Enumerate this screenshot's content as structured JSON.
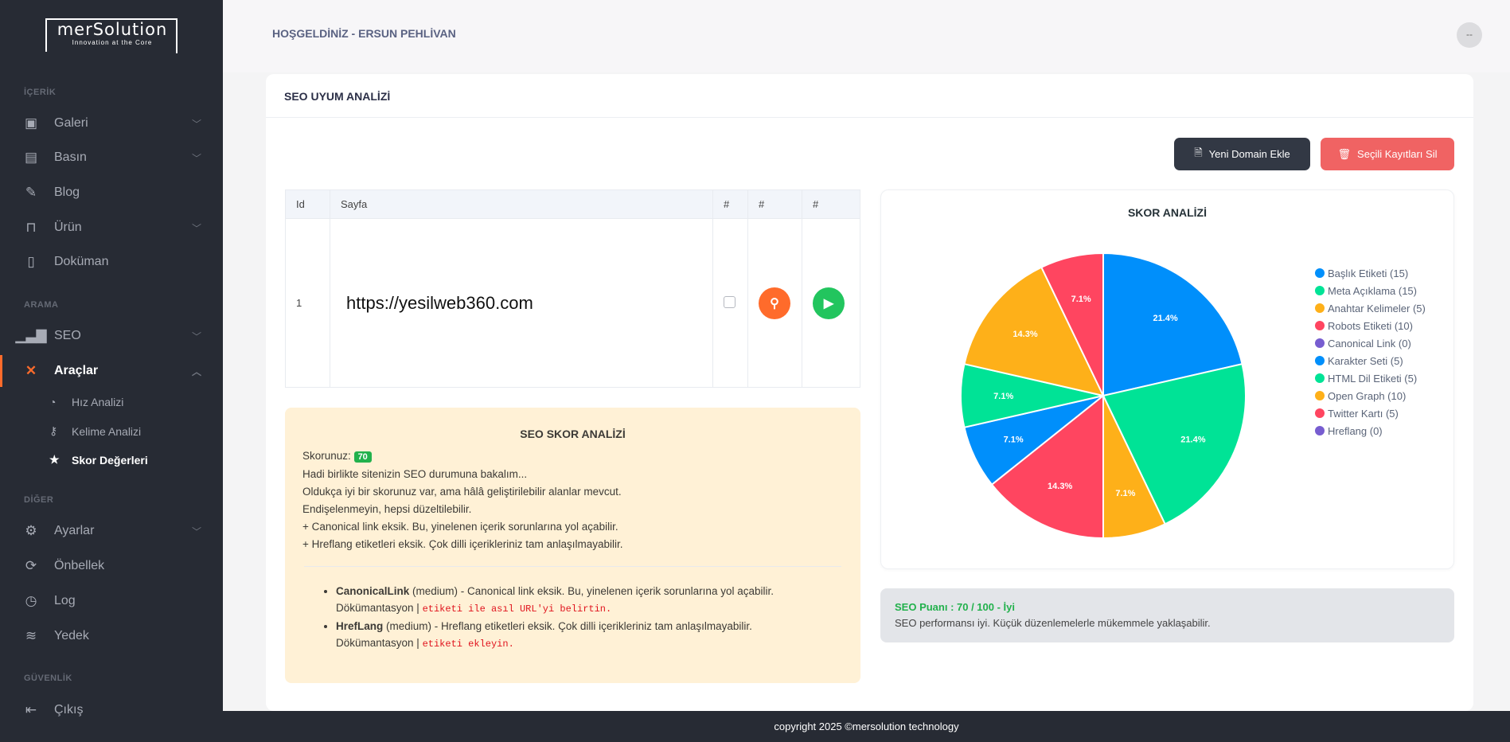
{
  "brand": {
    "name": "merSolution",
    "tagline": "Innovation at the Core"
  },
  "header": {
    "welcome": "HOŞGELDİNİZ - ERSUN PEHLİVAN",
    "avatar": "--"
  },
  "sidebar": {
    "sections": [
      "İÇERİK",
      "ARAMA",
      "DİĞER",
      "GÜVENLİK"
    ],
    "items": [
      {
        "label": "Galeri",
        "icon": "gallery-icon"
      },
      {
        "label": "Basın",
        "icon": "newspaper-icon"
      },
      {
        "label": "Blog",
        "icon": "edit-icon"
      },
      {
        "label": "Ürün",
        "icon": "bag-icon"
      },
      {
        "label": "Doküman",
        "icon": "document-icon"
      },
      {
        "label": "SEO",
        "icon": "bar-chart-icon"
      },
      {
        "label": "Araçlar",
        "icon": "tools-icon",
        "active": true
      },
      {
        "label": "Ayarlar",
        "icon": "gear-icon"
      },
      {
        "label": "Önbellek",
        "icon": "refresh-icon"
      },
      {
        "label": "Log",
        "icon": "clipboard-clock-icon"
      },
      {
        "label": "Yedek",
        "icon": "database-icon"
      },
      {
        "label": "Çıkış",
        "icon": "logout-icon"
      }
    ],
    "subitems": [
      {
        "label": "Hız Analizi",
        "icon": "speedometer-icon"
      },
      {
        "label": "Kelime Analizi",
        "icon": "key-icon"
      },
      {
        "label": "Skor Değerleri",
        "icon": "star-icon",
        "active": true
      }
    ]
  },
  "main": {
    "title": "SEO UYUM ANALİZİ",
    "buttons": {
      "add": "Yeni Domain Ekle",
      "delete": "Seçili Kayıtları Sil"
    },
    "table": {
      "headers": [
        "Id",
        "Sayfa",
        "#",
        "#",
        "#"
      ],
      "rows": [
        {
          "id": "1",
          "page": "https://yesilweb360.com"
        }
      ]
    },
    "analysis": {
      "title": "SEO SKOR ANALİZİ",
      "score_label": "Skorunuz:",
      "score": "70",
      "lines": [
        "Hadi birlikte sitenizin SEO durumuna bakalım...",
        "Oldukça iyi bir skorunuz var, ama hâlâ geliştirilebilir alanlar mevcut.",
        "Endişelenmeyin, hepsi düzeltilebilir.",
        "+ Canonical link eksik. Bu, yinelenen içerik sorunlarına yol açabilir.",
        "+ Hreflang etiketleri eksik. Çok dilli içerikleriniz tam anlaşılmayabilir."
      ],
      "issues": [
        {
          "name": "CanonicalLink",
          "level": "(medium)",
          "desc": " - Canonical link eksik. Bu, yinelenen içerik sorunlarına yol açabilir.",
          "doc": "Dökümantasyon | ",
          "code": "etiketi ile asıl URL'yi belirtin."
        },
        {
          "name": "HrefLang",
          "level": "(medium)",
          "desc": " - Hreflang etiketleri eksik. Çok dilli içerikleriniz tam anlaşılmayabilir.",
          "doc": "Dökümantasyon | ",
          "code": "etiketi ekleyin."
        }
      ]
    },
    "score_box": {
      "title": "SEO Puanı : 70 / 100 - İyi",
      "text": "SEO performansı iyi. Küçük düzenlemelerle mükemmele yaklaşabilir."
    }
  },
  "chart_data": {
    "type": "pie",
    "title": "SKOR ANALİZİ",
    "legend": "right",
    "categories": [
      "Başlık Etiketi",
      "Meta Açıklama",
      "Anahtar Kelimeler",
      "Robots Etiketi",
      "Canonical Link",
      "Karakter Seti",
      "HTML Dil Etiketi",
      "Open Graph",
      "Twitter Kartı",
      "Hreflang"
    ],
    "values": [
      15,
      15,
      5,
      10,
      0,
      5,
      5,
      10,
      5,
      0
    ],
    "legend_labels": [
      "Başlık Etiketi (15)",
      "Meta Açıklama (15)",
      "Anahtar Kelimeler (5)",
      "Robots Etiketi (10)",
      "Canonical Link (0)",
      "Karakter Seti (5)",
      "HTML Dil Etiketi (5)",
      "Open Graph (10)",
      "Twitter Kartı (5)",
      "Hreflang (0)"
    ],
    "colors": [
      "#008ffb",
      "#00e396",
      "#feb019",
      "#ff4560",
      "#775dd0",
      "#008ffb",
      "#00e396",
      "#feb019",
      "#ff4560",
      "#775dd0"
    ]
  },
  "footer": "copyright 2025 ©mersolution technology"
}
